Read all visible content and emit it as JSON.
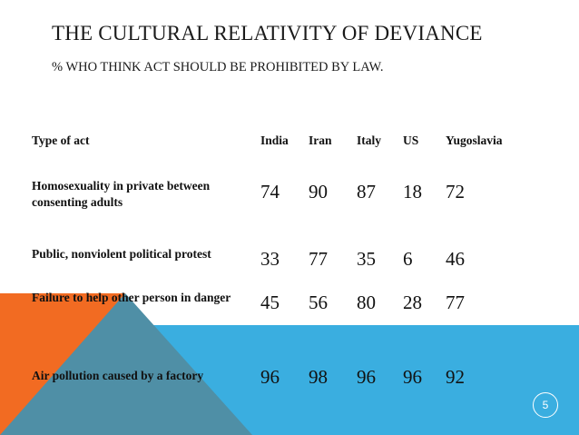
{
  "slide": {
    "title": "THE CULTURAL RELATIVITY OF DEVIANCE",
    "subtitle": "% WHO THINK ACT SHOULD BE PROHIBITED BY LAW.",
    "page_number": "5"
  },
  "table": {
    "header": [
      "Type of act",
      "India",
      "Iran",
      "Italy",
      "US",
      "Yugoslavia"
    ],
    "rows": [
      {
        "act": "Homosexuality in private between consenting adults",
        "values": [
          "74",
          "90",
          "87",
          "18",
          "72"
        ]
      },
      {
        "act": "Public, nonviolent political protest",
        "values": [
          "33",
          "77",
          "35",
          "6",
          "46"
        ]
      },
      {
        "act": "Failure to help other person in danger",
        "values": [
          "45",
          "56",
          "80",
          "28",
          "77"
        ]
      },
      {
        "act": "Air pollution caused by a factory",
        "values": [
          "96",
          "98",
          "96",
          "96",
          "92"
        ]
      }
    ]
  },
  "colors": {
    "band_blue": "#3aaee0",
    "triangle_orange": "#f26b22",
    "triangle_teal": "#4f8fa6",
    "text": "#111111"
  }
}
